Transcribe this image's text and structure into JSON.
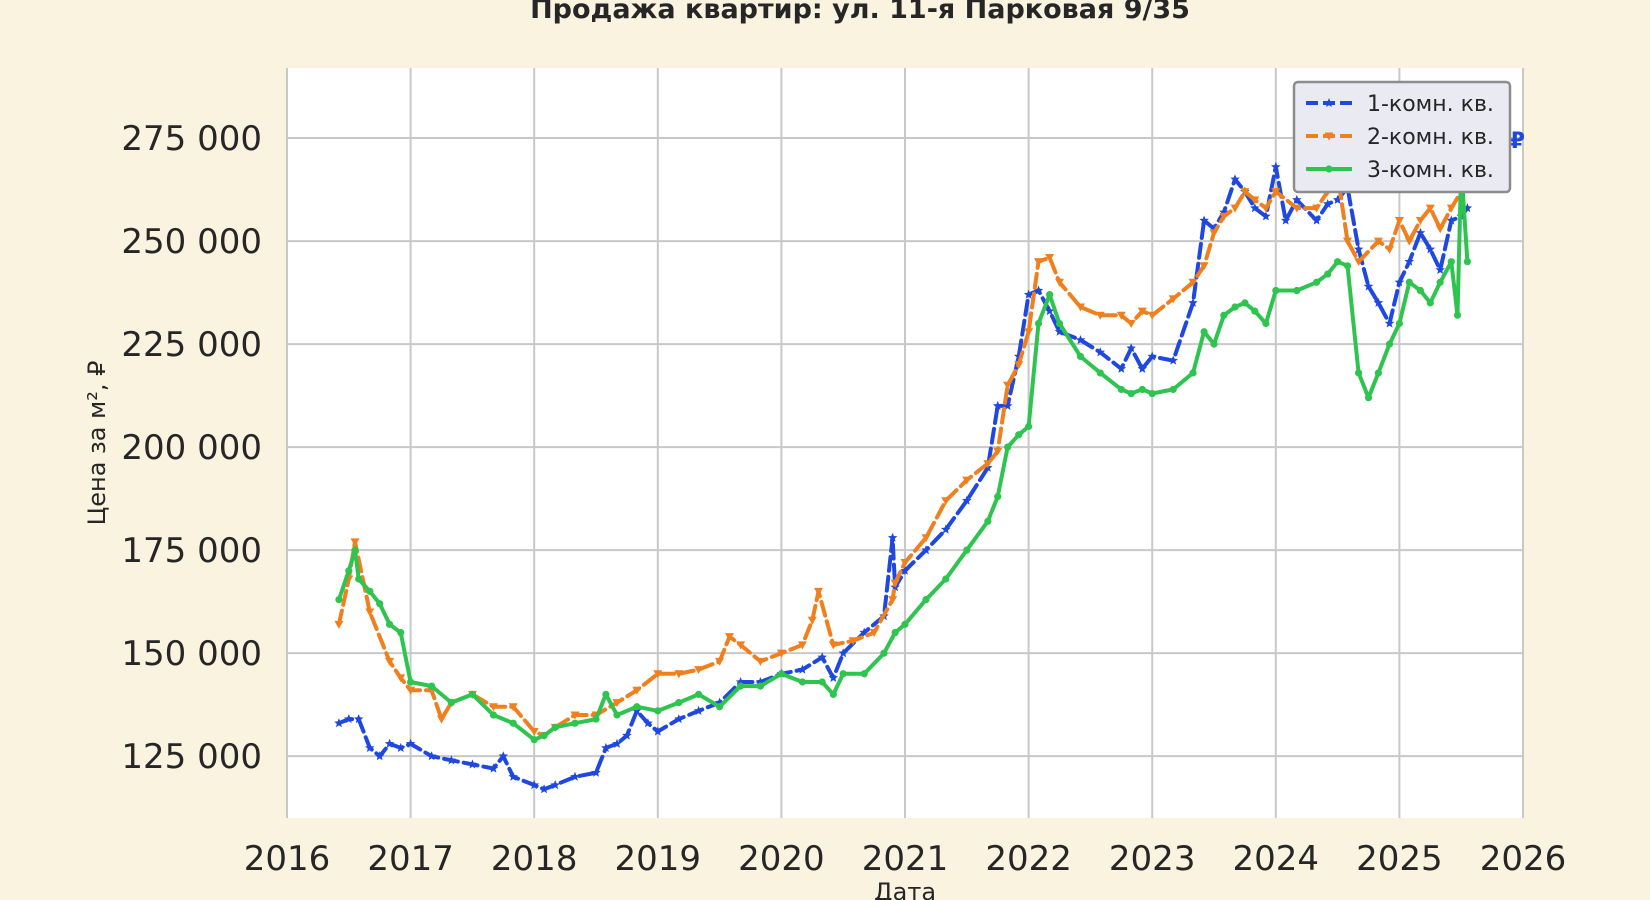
{
  "chart_data": {
    "type": "line",
    "title": "Продажа квартир: ул. 11-я Парковая 9/35",
    "xlabel": "Дата",
    "ylabel": "Цена за м², ₽",
    "xlim": [
      2016.0,
      2026.0
    ],
    "ylim": [
      110000,
      292000
    ],
    "x_ticks": [
      "2016",
      "2017",
      "2018",
      "2019",
      "2020",
      "2021",
      "2022",
      "2023",
      "2024",
      "2025",
      "2026"
    ],
    "y_ticks": [
      "125 000",
      "150 000",
      "175 000",
      "200 000",
      "225 000",
      "250 000",
      "275 000"
    ],
    "y_tick_values": [
      125000,
      150000,
      175000,
      200000,
      225000,
      250000,
      275000
    ],
    "grid": true,
    "legend_position": "top-right",
    "end_labels": [
      "268 404 ₽"
    ],
    "series": [
      {
        "name": "1-комн. кв.",
        "color": "#1f48e0",
        "style": "dashed",
        "marker": "star",
        "x": [
          2016.42,
          2016.5,
          2016.58,
          2016.67,
          2016.75,
          2016.83,
          2016.92,
          2017.0,
          2017.17,
          2017.33,
          2017.5,
          2017.67,
          2017.75,
          2017.83,
          2018.0,
          2018.08,
          2018.17,
          2018.33,
          2018.5,
          2018.58,
          2018.67,
          2018.75,
          2018.83,
          2018.92,
          2019.0,
          2019.17,
          2019.33,
          2019.5,
          2019.67,
          2019.83,
          2020.0,
          2020.17,
          2020.33,
          2020.42,
          2020.5,
          2020.67,
          2020.83,
          2020.9,
          2020.92,
          2021.0,
          2021.17,
          2021.33,
          2021.5,
          2021.67,
          2021.75,
          2021.83,
          2021.92,
          2022.0,
          2022.08,
          2022.17,
          2022.25,
          2022.42,
          2022.58,
          2022.75,
          2022.83,
          2022.92,
          2023.0,
          2023.17,
          2023.33,
          2023.42,
          2023.5,
          2023.58,
          2023.67,
          2023.75,
          2023.83,
          2023.92,
          2024.0,
          2024.08,
          2024.17,
          2024.33,
          2024.42,
          2024.5,
          2024.58,
          2024.67,
          2024.75,
          2024.83,
          2024.92,
          2025.0,
          2025.08,
          2025.17,
          2025.25,
          2025.33,
          2025.42,
          2025.5,
          2025.55
        ],
        "y": [
          133000,
          134000,
          134000,
          127000,
          125000,
          128000,
          127000,
          128000,
          125000,
          124000,
          123000,
          122000,
          125000,
          120000,
          118000,
          117000,
          118000,
          120000,
          121000,
          127000,
          128000,
          130000,
          136000,
          133000,
          131000,
          134000,
          136000,
          138000,
          143000,
          143000,
          145000,
          146000,
          149000,
          144000,
          150000,
          155000,
          159000,
          178000,
          166000,
          170000,
          175000,
          180000,
          187000,
          195000,
          210000,
          210000,
          222000,
          237000,
          238000,
          233000,
          228000,
          226000,
          223000,
          219000,
          224000,
          219000,
          222000,
          221000,
          235000,
          255000,
          253000,
          257000,
          265000,
          262000,
          258000,
          256000,
          268000,
          255000,
          260000,
          255000,
          259000,
          260000,
          263000,
          248000,
          239000,
          235000,
          230000,
          240000,
          245000,
          252000,
          248000,
          243000,
          255000,
          256000,
          258000
        ]
      },
      {
        "name": "2-комн. кв.",
        "color": "#f07f1e",
        "style": "dashed",
        "marker": "triangle-down",
        "x": [
          2016.42,
          2016.5,
          2016.55,
          2016.67,
          2016.83,
          2016.92,
          2017.0,
          2017.17,
          2017.25,
          2017.33,
          2017.5,
          2017.67,
          2017.83,
          2018.0,
          2018.08,
          2018.17,
          2018.33,
          2018.5,
          2018.67,
          2018.83,
          2019.0,
          2019.17,
          2019.33,
          2019.5,
          2019.58,
          2019.67,
          2019.83,
          2020.0,
          2020.17,
          2020.25,
          2020.3,
          2020.42,
          2020.58,
          2020.75,
          2020.9,
          2020.92,
          2021.0,
          2021.17,
          2021.33,
          2021.5,
          2021.67,
          2021.75,
          2021.83,
          2021.92,
          2022.0,
          2022.08,
          2022.17,
          2022.25,
          2022.42,
          2022.58,
          2022.75,
          2022.83,
          2022.92,
          2023.0,
          2023.17,
          2023.33,
          2023.42,
          2023.5,
          2023.58,
          2023.67,
          2023.75,
          2023.83,
          2023.92,
          2024.0,
          2024.17,
          2024.33,
          2024.42,
          2024.5,
          2024.58,
          2024.67,
          2024.83,
          2024.92,
          2025.0,
          2025.08,
          2025.17,
          2025.25,
          2025.33,
          2025.42,
          2025.5,
          2025.55
        ],
        "y": [
          157000,
          168000,
          177000,
          160000,
          148000,
          144000,
          141000,
          141000,
          134000,
          138000,
          140000,
          137000,
          137000,
          131000,
          130000,
          132000,
          135000,
          135000,
          138000,
          141000,
          145000,
          145000,
          146000,
          148000,
          154000,
          152000,
          148000,
          150000,
          152000,
          158000,
          165000,
          152000,
          153000,
          155000,
          163000,
          167000,
          172000,
          178000,
          187000,
          192000,
          196000,
          199000,
          215000,
          220000,
          228000,
          245000,
          246000,
          240000,
          234000,
          232000,
          232000,
          230000,
          233000,
          232000,
          236000,
          240000,
          244000,
          252000,
          256000,
          258000,
          262000,
          260000,
          258000,
          262000,
          258000,
          258000,
          262000,
          266000,
          250000,
          245000,
          250000,
          248000,
          255000,
          250000,
          255000,
          258000,
          253000,
          258000,
          262000,
          278000
        ]
      },
      {
        "name": "3-комн. кв.",
        "color": "#2ec44f",
        "style": "solid",
        "marker": "circle",
        "x": [
          2016.42,
          2016.5,
          2016.55,
          2016.58,
          2016.67,
          2016.75,
          2016.83,
          2016.92,
          2017.0,
          2017.17,
          2017.33,
          2017.5,
          2017.67,
          2017.83,
          2018.0,
          2018.08,
          2018.17,
          2018.33,
          2018.5,
          2018.58,
          2018.67,
          2018.83,
          2019.0,
          2019.17,
          2019.33,
          2019.5,
          2019.67,
          2019.83,
          2020.0,
          2020.17,
          2020.33,
          2020.42,
          2020.5,
          2020.67,
          2020.83,
          2020.92,
          2021.0,
          2021.17,
          2021.33,
          2021.5,
          2021.67,
          2021.75,
          2021.83,
          2021.92,
          2022.0,
          2022.08,
          2022.17,
          2022.25,
          2022.42,
          2022.58,
          2022.75,
          2022.83,
          2022.92,
          2023.0,
          2023.17,
          2023.33,
          2023.42,
          2023.5,
          2023.58,
          2023.67,
          2023.75,
          2023.83,
          2023.92,
          2024.0,
          2024.17,
          2024.33,
          2024.42,
          2024.5,
          2024.58,
          2024.67,
          2024.75,
          2024.83,
          2024.92,
          2025.0,
          2025.08,
          2025.17,
          2025.25,
          2025.33,
          2025.42,
          2025.47,
          2025.5,
          2025.55
        ],
        "y": [
          163000,
          170000,
          175000,
          168000,
          165000,
          162000,
          157000,
          155000,
          143000,
          142000,
          138000,
          140000,
          135000,
          133000,
          129000,
          130000,
          132000,
          133000,
          134000,
          140000,
          135000,
          137000,
          136000,
          138000,
          140000,
          137000,
          142000,
          142000,
          145000,
          143000,
          143000,
          140000,
          145000,
          145000,
          150000,
          155000,
          157000,
          163000,
          168000,
          175000,
          182000,
          188000,
          200000,
          203000,
          205000,
          230000,
          237000,
          230000,
          222000,
          218000,
          214000,
          213000,
          214000,
          213000,
          214000,
          218000,
          228000,
          225000,
          232000,
          234000,
          235000,
          233000,
          230000,
          238000,
          238000,
          240000,
          242000,
          245000,
          244000,
          218000,
          212000,
          218000,
          225000,
          230000,
          240000,
          238000,
          235000,
          240000,
          245000,
          232000,
          268000,
          245000
        ]
      }
    ]
  }
}
